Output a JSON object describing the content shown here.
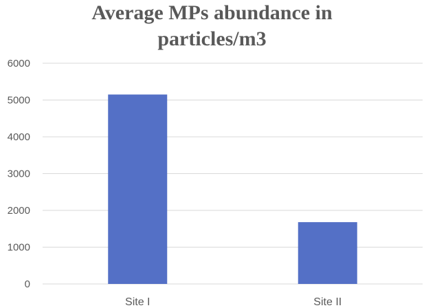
{
  "chart_data": {
    "type": "bar",
    "title_lines": [
      "Average MPs abundance in",
      "particles/m3"
    ],
    "categories": [
      "Site I",
      "Site II"
    ],
    "values": [
      5150,
      1680
    ],
    "ylim": [
      0,
      6000
    ],
    "yticks": [
      "0",
      "1000",
      "2000",
      "3000",
      "4000",
      "5000",
      "6000"
    ],
    "ytick_values": [
      0,
      1000,
      2000,
      3000,
      4000,
      5000,
      6000
    ],
    "grid": true,
    "legend": "none",
    "colors": {
      "bar": "#5470C6",
      "grid": "#D9D9D9",
      "text": "#595959"
    }
  }
}
